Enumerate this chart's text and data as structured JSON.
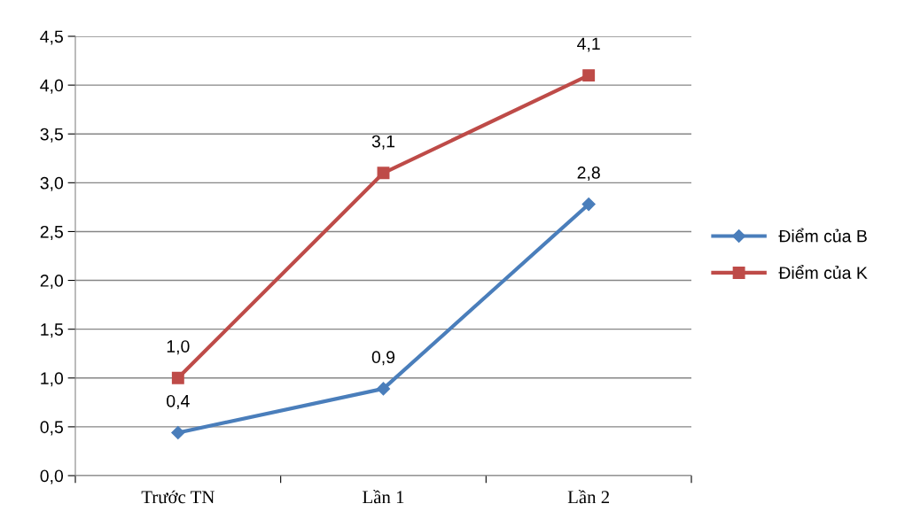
{
  "chart_data": {
    "type": "line",
    "categories": [
      "Trước TN",
      "Lần 1",
      "Lần 2"
    ],
    "series": [
      {
        "name": "Điểm của B",
        "color": "#4a7ebb",
        "marker": "diamond",
        "values": [
          0.44,
          0.89,
          2.78
        ],
        "value_labels": [
          "0,4",
          "0,9",
          "2,8"
        ]
      },
      {
        "name": "Điểm của K",
        "color": "#be4b48",
        "marker": "square",
        "values": [
          1.0,
          3.1,
          4.1
        ],
        "value_labels": [
          "1,0",
          "3,1",
          "4,1"
        ]
      }
    ],
    "ylim": [
      0,
      4.5
    ],
    "yticks": [
      {
        "value": 0,
        "label": "0,0"
      },
      {
        "value": 0.5,
        "label": "0,5"
      },
      {
        "value": 1.0,
        "label": "1,0"
      },
      {
        "value": 1.5,
        "label": "1,5"
      },
      {
        "value": 2.0,
        "label": "2,0"
      },
      {
        "value": 2.5,
        "label": "2,5"
      },
      {
        "value": 3.0,
        "label": "3,0"
      },
      {
        "value": 3.5,
        "label": "3,5"
      },
      {
        "value": 4.0,
        "label": "4,0"
      },
      {
        "value": 4.5,
        "label": "4,5"
      }
    ],
    "grid": "y",
    "legend": "right",
    "line_style": "solid"
  }
}
